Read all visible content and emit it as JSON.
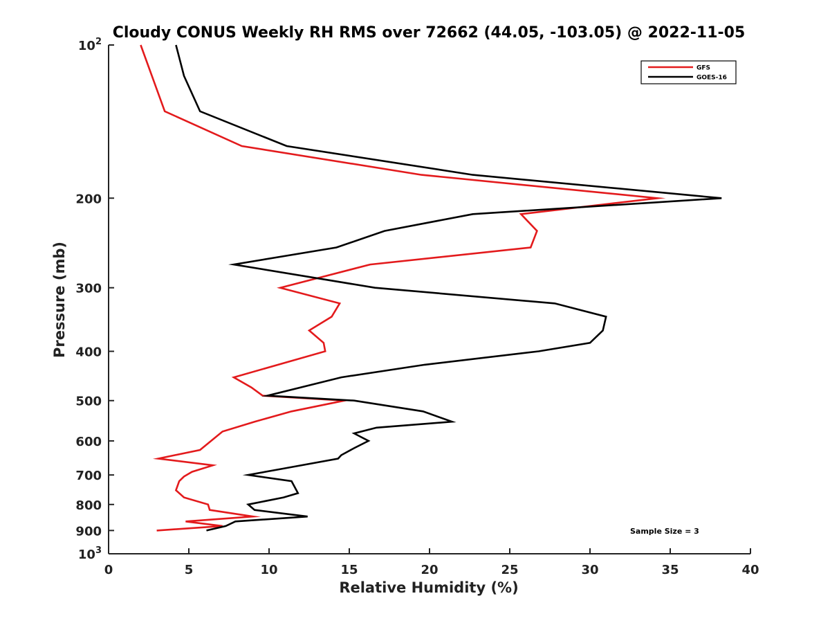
{
  "chart_data": {
    "type": "line",
    "title": "Cloudy CONUS Weekly RH RMS over 72662 (44.05, -103.05) @ 2022-11-05",
    "xlabel": "Relative Humidity (%)",
    "ylabel": "Pressure (mb)",
    "xlim": [
      0,
      40
    ],
    "ylim": [
      100,
      1000
    ],
    "y_scale": "log",
    "y_reversed": true,
    "grid": false,
    "legend_position": "top-right",
    "x_ticks": [
      0,
      5,
      10,
      15,
      20,
      25,
      30,
      35,
      40
    ],
    "y_ticks": [
      {
        "value": 100,
        "base": "10",
        "exp": "2"
      },
      {
        "value": 200,
        "label": "200"
      },
      {
        "value": 300,
        "label": "300"
      },
      {
        "value": 400,
        "label": "400"
      },
      {
        "value": 500,
        "label": "500"
      },
      {
        "value": 600,
        "label": "600"
      },
      {
        "value": 700,
        "label": "700"
      },
      {
        "value": 800,
        "label": "800"
      },
      {
        "value": 900,
        "label": "900"
      },
      {
        "value": 1000,
        "base": "10",
        "exp": "3"
      }
    ],
    "series": [
      {
        "name": "GFS",
        "color": "#e31a1c",
        "points": [
          [
            2.0,
            100
          ],
          [
            2.7,
            115
          ],
          [
            3.5,
            135
          ],
          [
            8.3,
            158
          ],
          [
            19.5,
            180
          ],
          [
            34.2,
            200
          ],
          [
            25.7,
            215
          ],
          [
            26.7,
            232
          ],
          [
            26.3,
            250
          ],
          [
            16.3,
            270
          ],
          [
            10.7,
            300
          ],
          [
            14.4,
            322
          ],
          [
            13.9,
            342
          ],
          [
            12.5,
            364
          ],
          [
            13.4,
            385
          ],
          [
            13.5,
            400
          ],
          [
            7.8,
            450
          ],
          [
            8.9,
            471
          ],
          [
            9.6,
            489
          ],
          [
            14.7,
            500
          ],
          [
            11.4,
            525
          ],
          [
            9.1,
            550
          ],
          [
            7.1,
            575
          ],
          [
            5.7,
            625
          ],
          [
            3.1,
            650
          ],
          [
            6.5,
            670
          ],
          [
            5.2,
            690
          ],
          [
            4.7,
            705
          ],
          [
            4.4,
            720
          ],
          [
            4.2,
            750
          ],
          [
            4.7,
            775
          ],
          [
            6.2,
            800
          ],
          [
            6.3,
            820
          ],
          [
            9.0,
            845
          ],
          [
            4.8,
            864
          ],
          [
            7.1,
            882
          ],
          [
            3.0,
            900
          ]
        ]
      },
      {
        "name": "GOES-16",
        "color": "#000000",
        "points": [
          [
            4.2,
            100
          ],
          [
            4.7,
            115
          ],
          [
            5.7,
            135
          ],
          [
            11.1,
            158
          ],
          [
            22.7,
            180
          ],
          [
            38.2,
            200
          ],
          [
            22.7,
            215
          ],
          [
            17.2,
            232
          ],
          [
            14.2,
            250
          ],
          [
            7.8,
            270
          ],
          [
            16.6,
            300
          ],
          [
            27.8,
            322
          ],
          [
            31.0,
            342
          ],
          [
            30.8,
            364
          ],
          [
            30.0,
            385
          ],
          [
            26.8,
            400
          ],
          [
            19.7,
            425
          ],
          [
            14.5,
            450
          ],
          [
            9.9,
            489
          ],
          [
            15.3,
            500
          ],
          [
            19.6,
            525
          ],
          [
            21.4,
            550
          ],
          [
            16.7,
            565
          ],
          [
            15.3,
            580
          ],
          [
            16.2,
            600
          ],
          [
            15.3,
            620
          ],
          [
            14.5,
            640
          ],
          [
            14.3,
            650
          ],
          [
            10.9,
            680
          ],
          [
            8.7,
            700
          ],
          [
            11.4,
            720
          ],
          [
            11.8,
            760
          ],
          [
            10.9,
            775
          ],
          [
            8.7,
            800
          ],
          [
            9.1,
            820
          ],
          [
            12.4,
            845
          ],
          [
            7.9,
            864
          ],
          [
            7.3,
            882
          ],
          [
            6.1,
            900
          ]
        ]
      }
    ],
    "annotations": [
      {
        "text": "Sample Size = 3"
      }
    ]
  }
}
